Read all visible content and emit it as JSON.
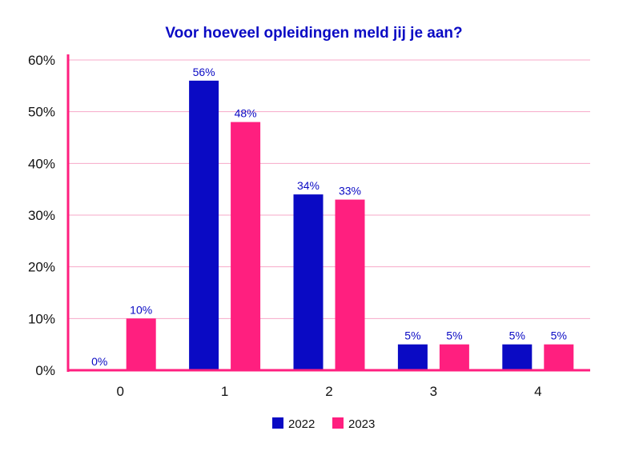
{
  "chart_data": {
    "type": "bar",
    "title": "Voor hoeveel opleidingen meld jij je aan?",
    "xlabel": "",
    "ylabel": "",
    "categories": [
      "0",
      "1",
      "2",
      "3",
      "4"
    ],
    "series": [
      {
        "name": "2022",
        "values": [
          0,
          56,
          34,
          5,
          5
        ],
        "labels": [
          "0%",
          "56%",
          "34%",
          "5%",
          "5%"
        ],
        "color": "#0a0ac4"
      },
      {
        "name": "2023",
        "values": [
          10,
          48,
          33,
          5,
          5
        ],
        "labels": [
          "10%",
          "48%",
          "33%",
          "5%",
          "5%"
        ],
        "color": "#ff1f7f"
      }
    ],
    "yticks": [
      "0%",
      "10%",
      "20%",
      "30%",
      "40%",
      "50%",
      "60%"
    ],
    "ylim": [
      0,
      60
    ],
    "grid": true,
    "legend": "bottom-center",
    "colors": {
      "title": "#0a0ac4",
      "axis": "#ff1f7f",
      "grid": "#f7a8c8",
      "data_label": "#0a0ac4"
    }
  }
}
